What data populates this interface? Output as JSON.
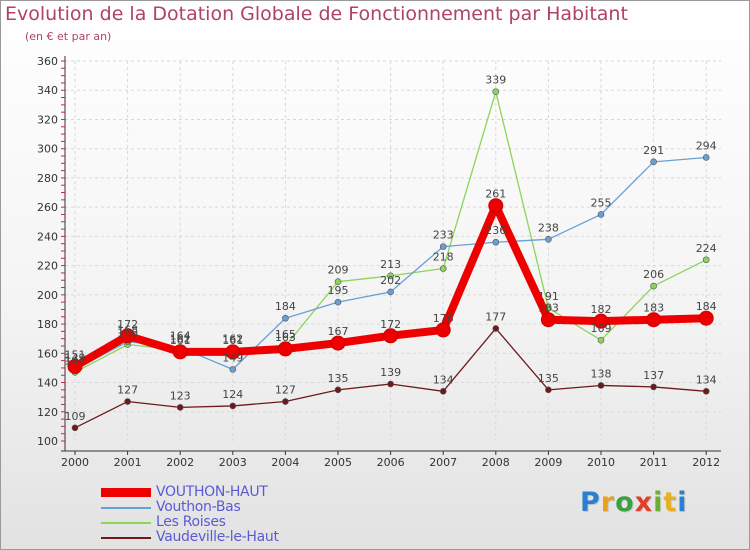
{
  "title": "Evolution de la Dotation Globale de Fonctionnement par Habitant",
  "subtitle": "(en € et par an)",
  "logo": {
    "text": "Proxiti",
    "letters": [
      "P",
      "r",
      "o",
      "x",
      "i",
      "t",
      "i"
    ],
    "colors": [
      "#2a7fd0",
      "#e8a020",
      "#3aa040",
      "#e0402a",
      "#6ab030",
      "#e8b020",
      "#2a7fd0"
    ]
  },
  "chart_data": {
    "type": "line",
    "categories": [
      "2000",
      "2001",
      "2002",
      "2003",
      "2004",
      "2005",
      "2006",
      "2007",
      "2008",
      "2009",
      "2010",
      "2011",
      "2012"
    ],
    "ylim": [
      100,
      360
    ],
    "yticks": [
      100,
      120,
      140,
      160,
      180,
      200,
      220,
      240,
      260,
      280,
      300,
      320,
      340,
      360
    ],
    "series": [
      {
        "name": "VOUTHON-HAUT",
        "color": "#ee0000",
        "values": [
          151,
          172,
          161,
          161,
          163,
          167,
          172,
          176,
          261,
          183,
          182,
          183,
          184
        ]
      },
      {
        "name": "Vouthon-Bas",
        "color": "#6a9fd4",
        "values": [
          149,
          168,
          164,
          149,
          184,
          195,
          202,
          233,
          236,
          238,
          255,
          291,
          294
        ]
      },
      {
        "name": "Les Roises",
        "color": "#8cd45a",
        "values": [
          147,
          166,
          162,
          162,
          165,
          209,
          213,
          218,
          339,
          191,
          169,
          206,
          224
        ]
      },
      {
        "name": "Vaudeville-le-Haut",
        "color": "#6e1a1a",
        "values": [
          109,
          127,
          123,
          124,
          127,
          135,
          139,
          134,
          177,
          135,
          138,
          137,
          134
        ]
      }
    ]
  }
}
